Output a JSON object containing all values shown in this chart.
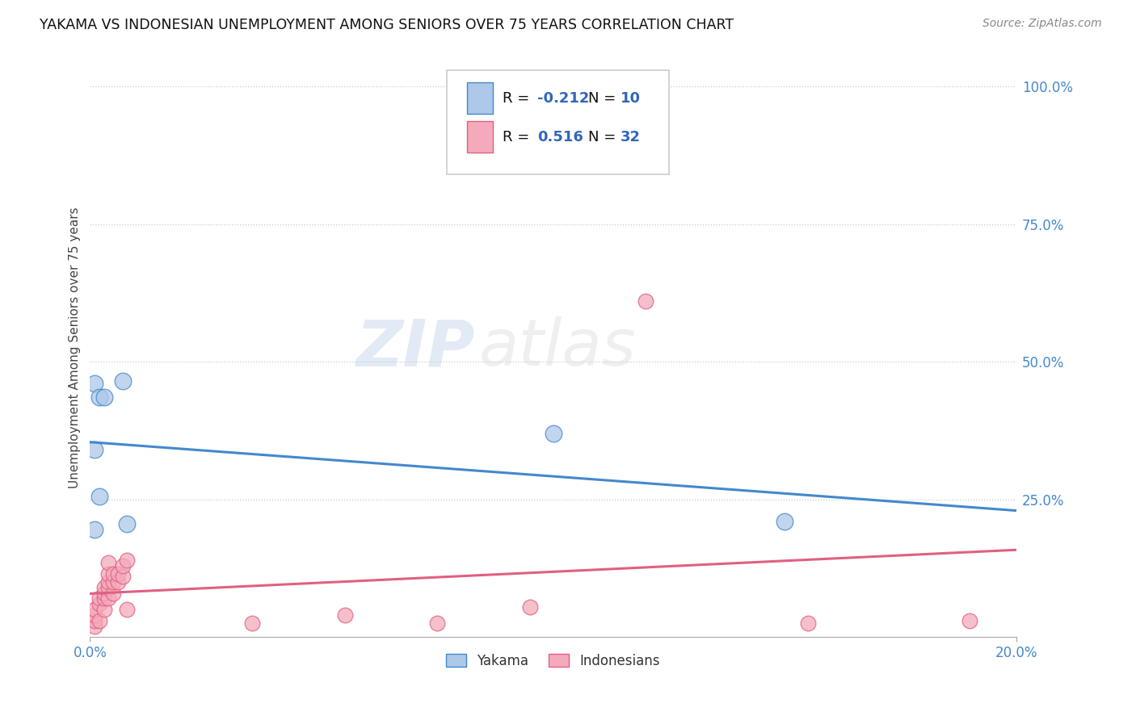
{
  "title": "YAKAMA VS INDONESIAN UNEMPLOYMENT AMONG SENIORS OVER 75 YEARS CORRELATION CHART",
  "source": "Source: ZipAtlas.com",
  "ylabel": "Unemployment Among Seniors over 75 years",
  "xlim": [
    0.0,
    0.2
  ],
  "ylim": [
    0.0,
    1.05
  ],
  "yakama_color": "#adc8e8",
  "indonesian_color": "#f4aabb",
  "yakama_line_color": "#4488cc",
  "indonesian_line_color": "#e06080",
  "legend_color": "#3366bb",
  "yakama_R": -0.212,
  "yakama_N": 10,
  "indonesian_R": 0.516,
  "indonesian_N": 32,
  "yakama_x": [
    0.001,
    0.001,
    0.002,
    0.003,
    0.001,
    0.002,
    0.007,
    0.008,
    0.1,
    0.15
  ],
  "yakama_y": [
    0.34,
    0.46,
    0.435,
    0.435,
    0.195,
    0.255,
    0.465,
    0.205,
    0.37,
    0.21
  ],
  "indonesian_x": [
    0.001,
    0.001,
    0.001,
    0.001,
    0.002,
    0.002,
    0.002,
    0.003,
    0.003,
    0.003,
    0.003,
    0.004,
    0.004,
    0.004,
    0.004,
    0.004,
    0.005,
    0.005,
    0.005,
    0.006,
    0.006,
    0.007,
    0.007,
    0.008,
    0.008,
    0.035,
    0.055,
    0.075,
    0.095,
    0.12,
    0.155,
    0.19
  ],
  "indonesian_y": [
    0.02,
    0.03,
    0.04,
    0.05,
    0.03,
    0.06,
    0.07,
    0.05,
    0.07,
    0.08,
    0.09,
    0.07,
    0.09,
    0.1,
    0.115,
    0.135,
    0.08,
    0.1,
    0.115,
    0.1,
    0.115,
    0.11,
    0.13,
    0.05,
    0.14,
    0.025,
    0.04,
    0.025,
    0.055,
    0.61,
    0.025,
    0.03
  ],
  "watermark_zip": "ZIP",
  "watermark_atlas": "atlas",
  "background_color": "#ffffff",
  "grid_color": "#cccccc",
  "ytick_positions": [
    0.0,
    0.25,
    0.5,
    0.75,
    1.0
  ],
  "ytick_labels": [
    "",
    "25.0%",
    "50.0%",
    "75.0%",
    "100.0%"
  ]
}
